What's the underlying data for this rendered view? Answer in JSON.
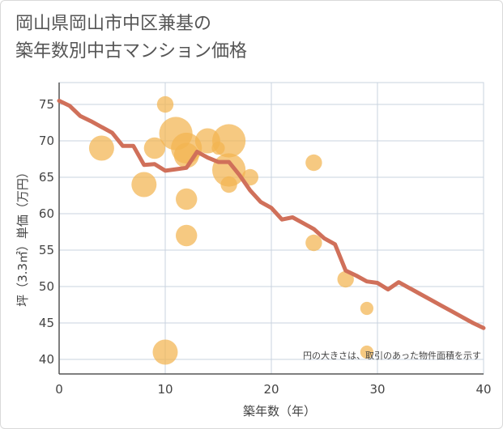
{
  "title_line1": "岡山県岡山市中区兼基の",
  "title_line2": "築年数別中古マンション価格",
  "chart_data": {
    "type": "scatter",
    "title": "岡山県岡山市中区兼基の築年数別中古マンション価格",
    "xlabel": "築年数（年）",
    "ylabel": "坪（3.3㎡）単価（万円）",
    "xlim": [
      0,
      40
    ],
    "ylim": [
      38,
      78
    ],
    "xticks": [
      0,
      10,
      20,
      30,
      40
    ],
    "yticks": [
      40,
      45,
      50,
      55,
      60,
      65,
      70,
      75
    ],
    "grid": true,
    "note": "円の大きさは、取引のあった物件面積を示す",
    "colors": {
      "bubble": "#f2b451",
      "trend": "#d0705a",
      "grid": "#c9d3df",
      "axis": "#555555"
    },
    "bubbles": [
      {
        "x": 4,
        "y": 69,
        "size": 3
      },
      {
        "x": 8,
        "y": 64,
        "size": 3
      },
      {
        "x": 9,
        "y": 69,
        "size": 2
      },
      {
        "x": 10,
        "y": 75,
        "size": 1
      },
      {
        "x": 10,
        "y": 41,
        "size": 3
      },
      {
        "x": 11,
        "y": 71,
        "size": 6
      },
      {
        "x": 12,
        "y": 69,
        "size": 5
      },
      {
        "x": 12,
        "y": 68,
        "size": 3
      },
      {
        "x": 12,
        "y": 62,
        "size": 2
      },
      {
        "x": 12,
        "y": 57,
        "size": 2
      },
      {
        "x": 14,
        "y": 70,
        "size": 3
      },
      {
        "x": 15,
        "y": 69,
        "size": 0.5
      },
      {
        "x": 16,
        "y": 70,
        "size": 6
      },
      {
        "x": 16,
        "y": 66,
        "size": 6
      },
      {
        "x": 16,
        "y": 64,
        "size": 1
      },
      {
        "x": 18,
        "y": 65,
        "size": 1
      },
      {
        "x": 24,
        "y": 67,
        "size": 1
      },
      {
        "x": 24,
        "y": 56,
        "size": 1
      },
      {
        "x": 27,
        "y": 51,
        "size": 1
      },
      {
        "x": 29,
        "y": 47,
        "size": 0.5
      },
      {
        "x": 29,
        "y": 41,
        "size": 0.5
      }
    ],
    "trend": [
      {
        "x": 0,
        "y": 75.5
      },
      {
        "x": 1,
        "y": 74.8
      },
      {
        "x": 2,
        "y": 73.4
      },
      {
        "x": 3,
        "y": 72.7
      },
      {
        "x": 4,
        "y": 71.9
      },
      {
        "x": 5,
        "y": 71.1
      },
      {
        "x": 6,
        "y": 69.3
      },
      {
        "x": 7,
        "y": 69.3
      },
      {
        "x": 8,
        "y": 66.7
      },
      {
        "x": 9,
        "y": 66.8
      },
      {
        "x": 10,
        "y": 65.9
      },
      {
        "x": 11,
        "y": 66.1
      },
      {
        "x": 12,
        "y": 66.3
      },
      {
        "x": 13,
        "y": 68.5
      },
      {
        "x": 14,
        "y": 67.7
      },
      {
        "x": 15,
        "y": 67.1
      },
      {
        "x": 16,
        "y": 67.1
      },
      {
        "x": 17,
        "y": 65.3
      },
      {
        "x": 18,
        "y": 63.2
      },
      {
        "x": 19,
        "y": 61.6
      },
      {
        "x": 20,
        "y": 60.8
      },
      {
        "x": 21,
        "y": 59.2
      },
      {
        "x": 22,
        "y": 59.5
      },
      {
        "x": 23,
        "y": 58.7
      },
      {
        "x": 24,
        "y": 57.9
      },
      {
        "x": 25,
        "y": 56.6
      },
      {
        "x": 26,
        "y": 55.8
      },
      {
        "x": 27,
        "y": 52.2
      },
      {
        "x": 28,
        "y": 51.5
      },
      {
        "x": 29,
        "y": 50.7
      },
      {
        "x": 30,
        "y": 50.5
      },
      {
        "x": 31,
        "y": 49.6
      },
      {
        "x": 32,
        "y": 50.6
      },
      {
        "x": 33,
        "y": 49.8
      },
      {
        "x": 34,
        "y": 49.0
      },
      {
        "x": 35,
        "y": 48.2
      },
      {
        "x": 36,
        "y": 47.4
      },
      {
        "x": 37,
        "y": 46.6
      },
      {
        "x": 38,
        "y": 45.8
      },
      {
        "x": 39,
        "y": 45.0
      },
      {
        "x": 40,
        "y": 44.3
      }
    ]
  }
}
